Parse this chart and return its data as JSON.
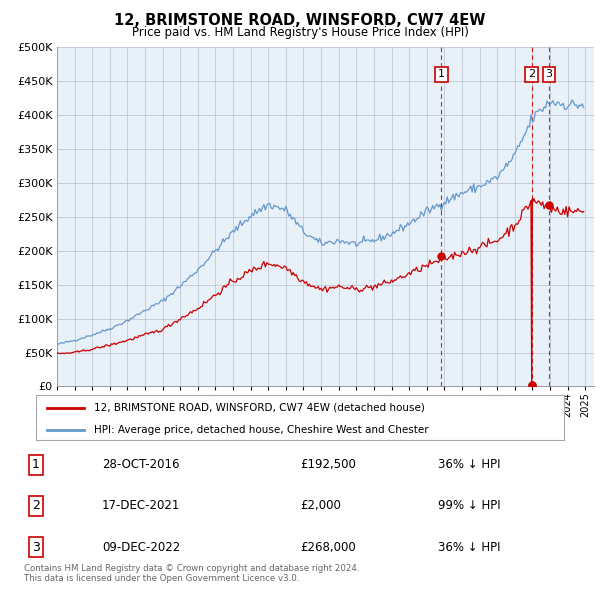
{
  "title": "12, BRIMSTONE ROAD, WINSFORD, CW7 4EW",
  "subtitle": "Price paid vs. HM Land Registry's House Price Index (HPI)",
  "ylim": [
    0,
    500000
  ],
  "yticks": [
    0,
    50000,
    100000,
    150000,
    200000,
    250000,
    300000,
    350000,
    400000,
    450000,
    500000
  ],
  "xlim_start": 1995.0,
  "xlim_end": 2025.5,
  "background_color": "#ffffff",
  "plot_bg_color": "#e8f0f8",
  "grid_color": "#c0c8d8",
  "hpi_color": "#6699cc",
  "price_color": "#cc0000",
  "legend_label_price": "12, BRIMSTONE ROAD, WINSFORD, CW7 4EW (detached house)",
  "legend_label_hpi": "HPI: Average price, detached house, Cheshire West and Chester",
  "transactions": [
    {
      "num": 1,
      "date": "28-OCT-2016",
      "price": 192500,
      "pct": "36%",
      "year_x": 2016.83
    },
    {
      "num": 2,
      "date": "17-DEC-2021",
      "price": 2000,
      "pct": "99%",
      "year_x": 2021.96
    },
    {
      "num": 3,
      "date": "09-DEC-2022",
      "price": 268000,
      "pct": "36%",
      "year_x": 2022.94
    }
  ],
  "sale_points": [
    [
      2016.83,
      192500
    ],
    [
      2021.96,
      2000
    ],
    [
      2022.94,
      268000
    ]
  ],
  "footer": "Contains HM Land Registry data © Crown copyright and database right 2024.\nThis data is licensed under the Open Government Licence v3.0."
}
